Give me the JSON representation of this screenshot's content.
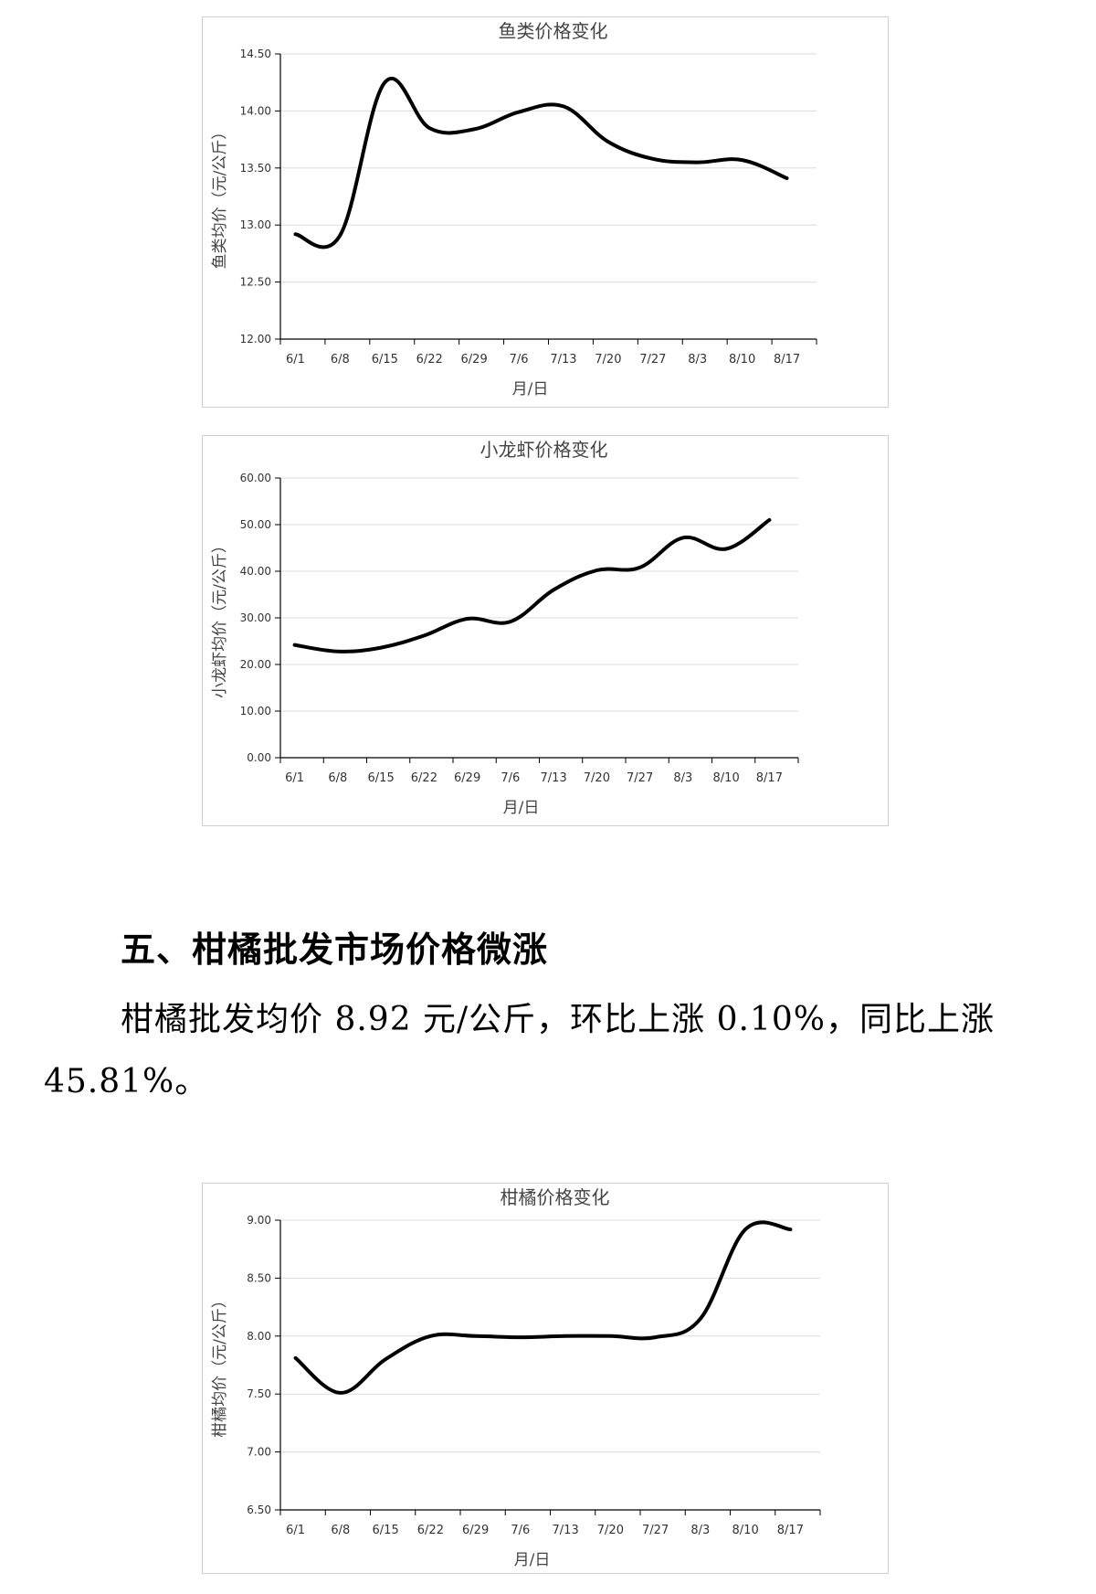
{
  "chart_data": [
    {
      "type": "line",
      "title": "鱼类价格变化",
      "xlabel": "月/日",
      "ylabel": "鱼类均价（元/公斤）",
      "categories": [
        "6/1",
        "6/8",
        "6/15",
        "6/22",
        "6/29",
        "7/6",
        "7/13",
        "7/20",
        "7/27",
        "8/3",
        "8/10",
        "8/17"
      ],
      "ylim": [
        12.0,
        14.5
      ],
      "yticks": [
        "12.00",
        "12.50",
        "13.00",
        "13.50",
        "14.00",
        "14.50"
      ],
      "grid": true,
      "series": [
        {
          "values": [
            12.92,
            12.91,
            14.25,
            13.85,
            13.84,
            13.99,
            14.04,
            13.73,
            13.58,
            13.55,
            13.57,
            13.41
          ]
        }
      ]
    },
    {
      "type": "line",
      "title": "小龙虾价格变化",
      "xlabel": "月/日",
      "ylabel": "小龙虾均价（元/公斤）",
      "categories": [
        "6/1",
        "6/8",
        "6/15",
        "6/22",
        "6/29",
        "7/6",
        "7/13",
        "7/20",
        "7/27",
        "8/3",
        "8/10",
        "8/17"
      ],
      "ylim": [
        0,
        60
      ],
      "yticks": [
        "0.00",
        "10.00",
        "20.00",
        "30.00",
        "40.00",
        "50.00",
        "60.00"
      ],
      "grid": true,
      "series": [
        {
          "values": [
            24.2,
            22.8,
            23.6,
            26.2,
            29.8,
            29.2,
            36.0,
            40.2,
            40.8,
            47.2,
            44.8,
            51.0
          ]
        }
      ]
    },
    {
      "type": "line",
      "title": "柑橘价格变化",
      "xlabel": "月/日",
      "ylabel": "柑橘均价（元/公斤）",
      "categories": [
        "6/1",
        "6/8",
        "6/15",
        "6/22",
        "6/29",
        "7/6",
        "7/13",
        "7/20",
        "7/27",
        "8/3",
        "8/10",
        "8/17"
      ],
      "ylim": [
        6.5,
        9.0
      ],
      "yticks": [
        "6.50",
        "7.00",
        "7.50",
        "8.00",
        "8.50",
        "9.00"
      ],
      "grid": true,
      "series": [
        {
          "values": [
            7.81,
            7.51,
            7.8,
            8.0,
            8.0,
            7.99,
            8.0,
            8.0,
            7.99,
            8.15,
            8.92,
            8.92
          ]
        }
      ]
    }
  ],
  "section": {
    "heading": "五、柑橘批发市场价格微涨",
    "paragraph": "柑橘批发均价 8.92 元/公斤，环比上涨 0.10%，同比上涨 45.81%。"
  }
}
